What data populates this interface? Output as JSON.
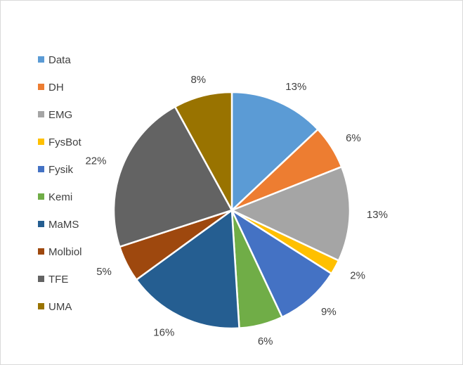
{
  "chart_data": {
    "type": "pie",
    "legend_position": "left",
    "slices": [
      {
        "label": "Data",
        "value": 13,
        "display": "13%",
        "color": "#5B9BD5"
      },
      {
        "label": "DH",
        "value": 6,
        "display": "6%",
        "color": "#ED7D31"
      },
      {
        "label": "EMG",
        "value": 13,
        "display": "13%",
        "color": "#A5A5A5"
      },
      {
        "label": "FysBot",
        "value": 2,
        "display": "2%",
        "color": "#FFC000"
      },
      {
        "label": "Fysik",
        "value": 9,
        "display": "9%",
        "color": "#4472C4"
      },
      {
        "label": "Kemi",
        "value": 6,
        "display": "6%",
        "color": "#70AD47"
      },
      {
        "label": "MaMS",
        "value": 16,
        "display": "16%",
        "color": "#255E91"
      },
      {
        "label": "Molbiol",
        "value": 5,
        "display": "5%",
        "color": "#9E480E"
      },
      {
        "label": "TFE",
        "value": 22,
        "display": "22%",
        "color": "#636363"
      },
      {
        "label": "UMA",
        "value": 8,
        "display": "8%",
        "color": "#997300"
      }
    ]
  }
}
